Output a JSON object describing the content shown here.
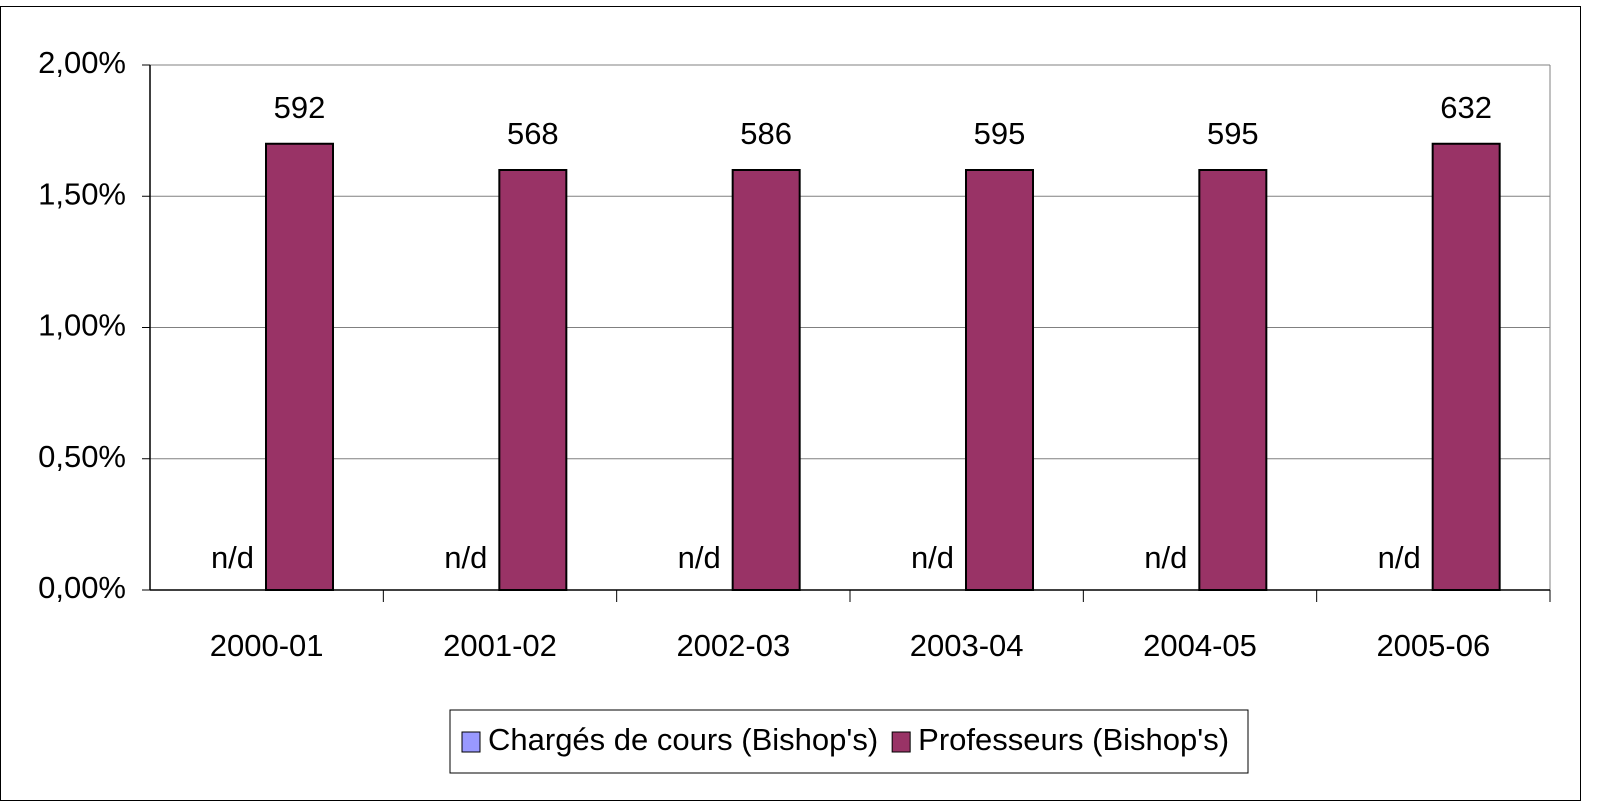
{
  "chart_data": {
    "type": "bar",
    "categories": [
      "2000-01",
      "2001-02",
      "2002-03",
      "2003-04",
      "2004-05",
      "2005-06"
    ],
    "series": [
      {
        "name": "Chargés de cours (Bishop's)",
        "color": "#9999ff",
        "values": [
          null,
          null,
          null,
          null,
          null,
          null
        ],
        "value_labels": [
          "n/d",
          "n/d",
          "n/d",
          "n/d",
          "n/d",
          "n/d"
        ]
      },
      {
        "name": "Professeurs (Bishop's)",
        "color": "#993366",
        "values": [
          1.7,
          1.6,
          1.6,
          1.6,
          1.6,
          1.7
        ],
        "counts": [
          592,
          568,
          586,
          595,
          595,
          632
        ]
      }
    ],
    "ylim": [
      0,
      2
    ],
    "yticks": [
      {
        "value": 0,
        "label": "0,00%"
      },
      {
        "value": 0.5,
        "label": "0,50%"
      },
      {
        "value": 1,
        "label": "1,00%"
      },
      {
        "value": 1.5,
        "label": "1,50%"
      },
      {
        "value": 2,
        "label": "2,00%"
      }
    ],
    "grid": true,
    "legend": "bottom"
  }
}
